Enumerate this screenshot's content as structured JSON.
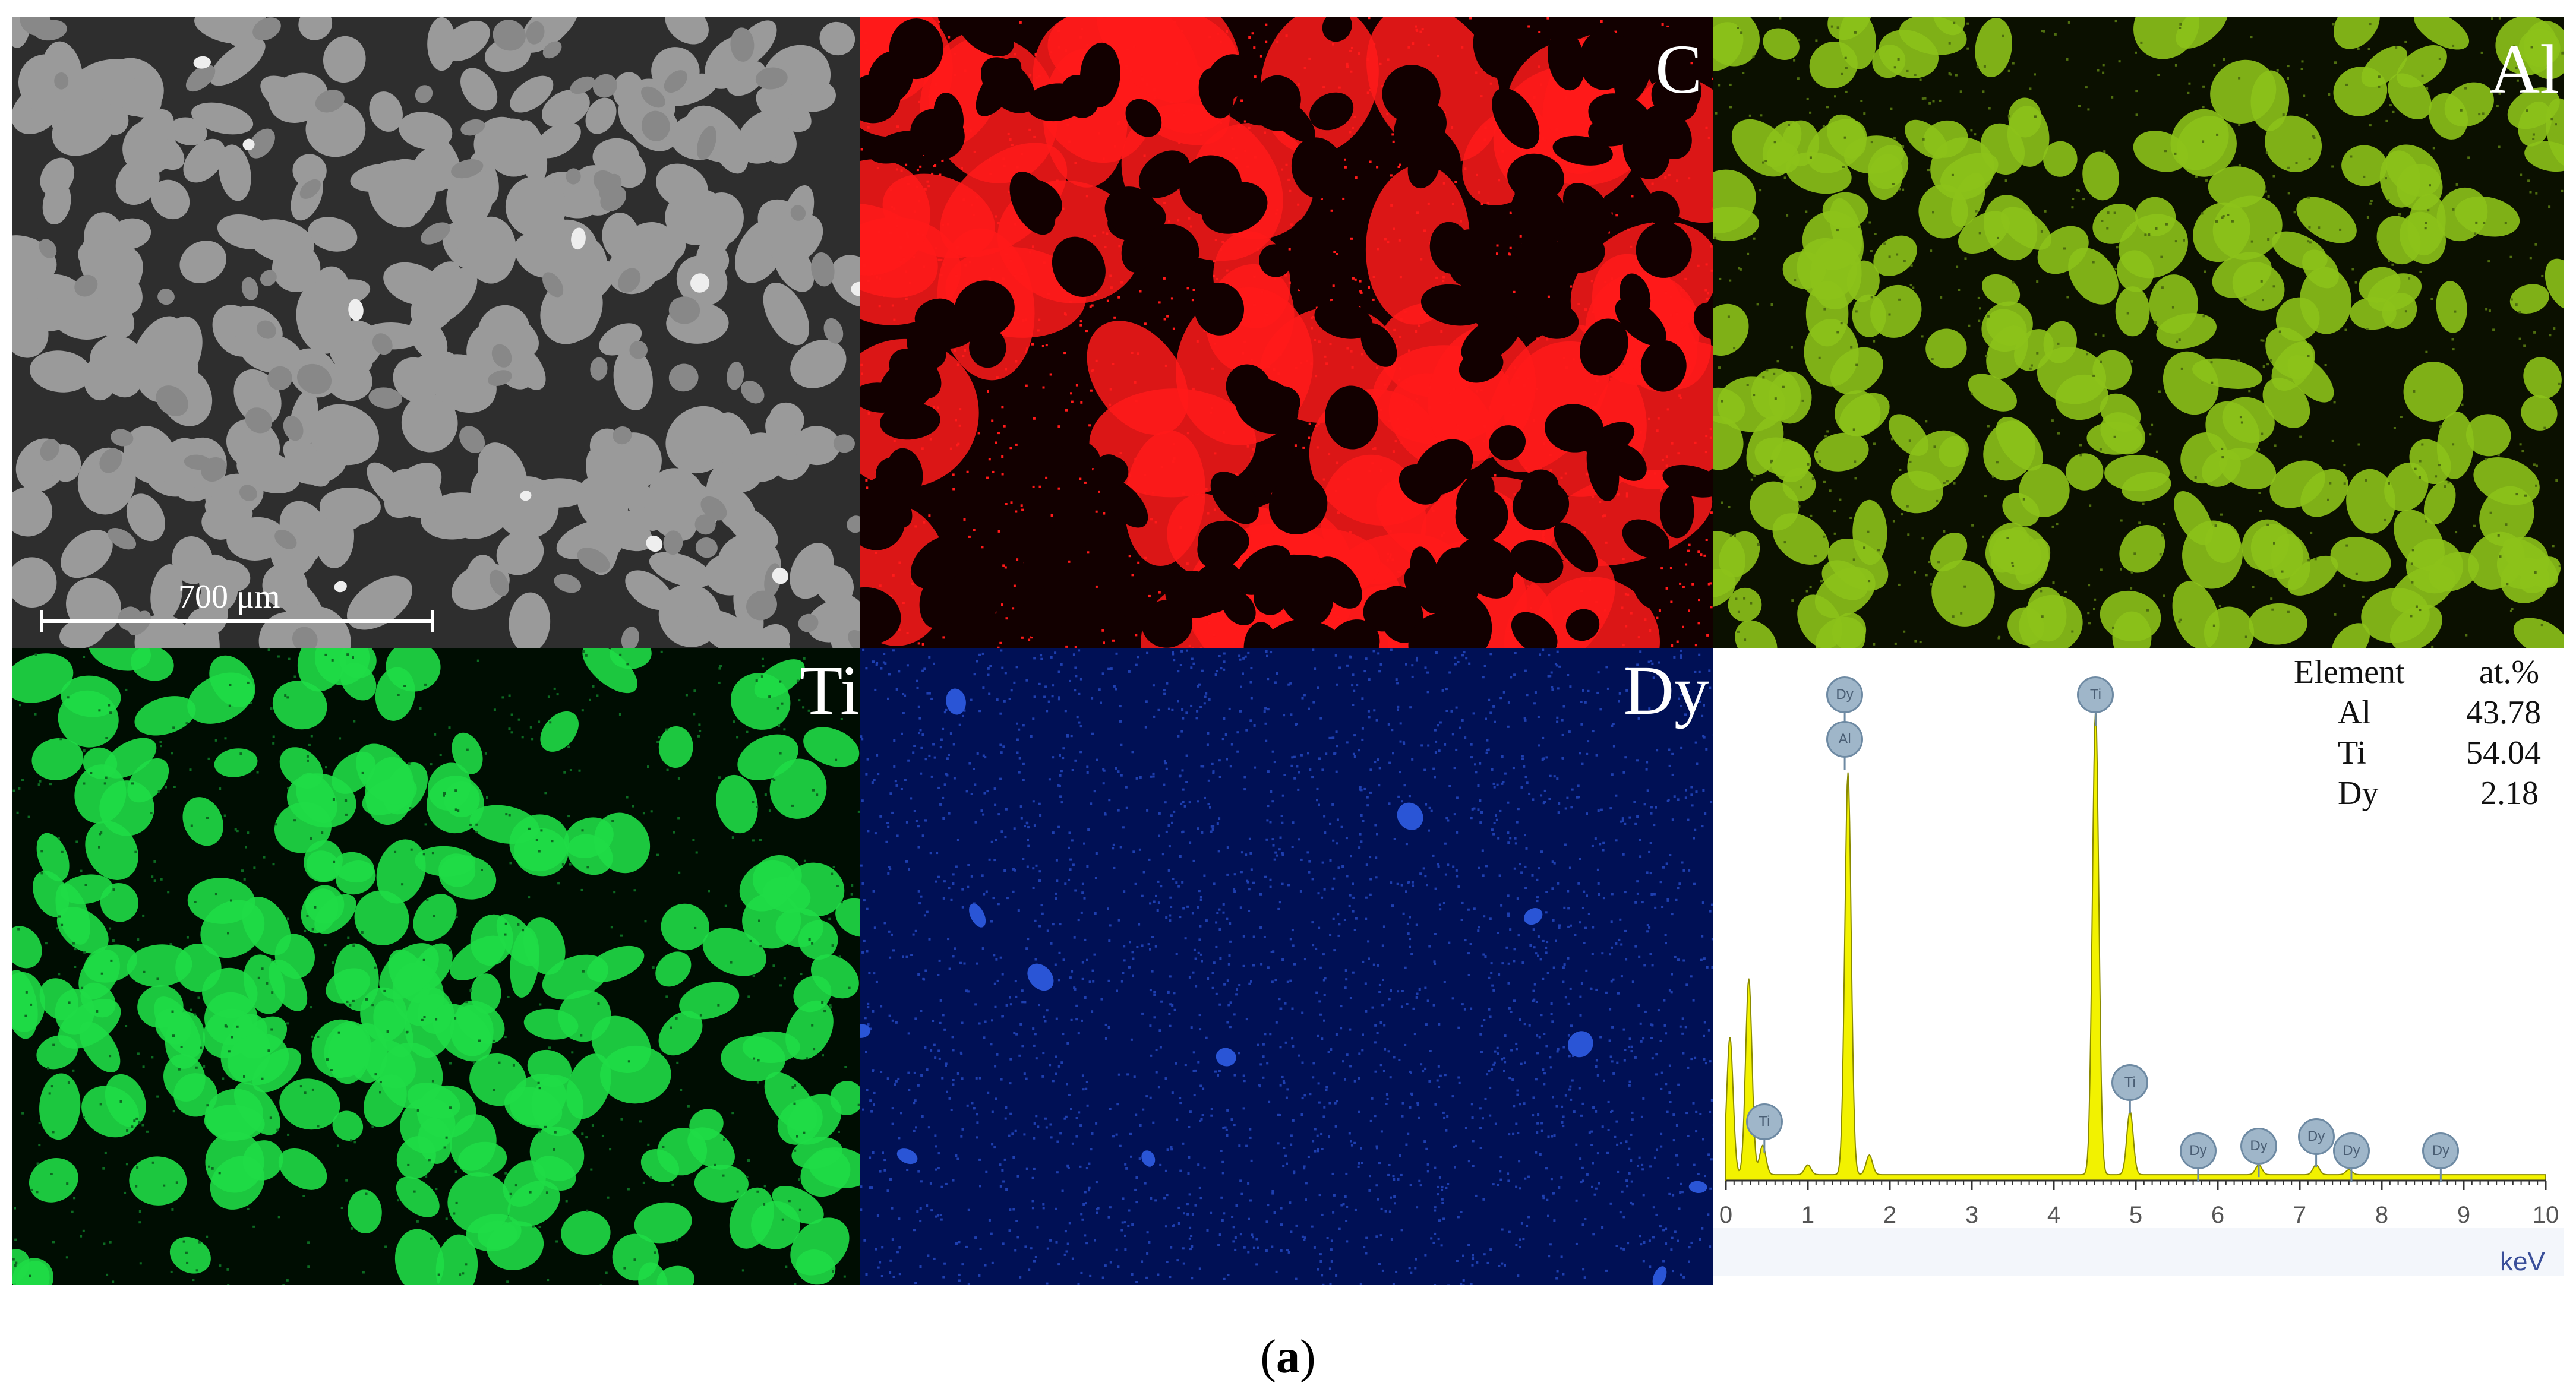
{
  "panels": {
    "sem": {
      "scale_bar_label": "700 μm"
    },
    "map_c": {
      "label": "C",
      "color": "#ff1a1a"
    },
    "map_al": {
      "label": "Al",
      "color": "#8cc21a"
    },
    "map_ti": {
      "label": "Ti",
      "color": "#1fdc46"
    },
    "map_dy": {
      "label": "Dy",
      "color": "#2a55d6"
    }
  },
  "composition_table": {
    "header_element": "Element",
    "header_value": "at.%",
    "rows": [
      {
        "element": "Al",
        "value": "43.78"
      },
      {
        "element": "Ti",
        "value": "54.04"
      },
      {
        "element": "Dy",
        "value": "2.18"
      }
    ]
  },
  "chart_data": {
    "type": "line",
    "xlabel": "keV",
    "ylabel": "",
    "xlim": [
      0,
      10
    ],
    "x_ticks": [
      "0",
      "1",
      "2",
      "3",
      "4",
      "5",
      "6",
      "7",
      "8",
      "9",
      "10"
    ],
    "fill_color": "#f2f200",
    "peaks": [
      {
        "x": 0.05,
        "y": 0.28
      },
      {
        "x": 0.28,
        "y": 0.4
      },
      {
        "x": 0.45,
        "y": 0.06
      },
      {
        "x": 1.0,
        "y": 0.02
      },
      {
        "x": 1.49,
        "y": 0.82
      },
      {
        "x": 1.75,
        "y": 0.04
      },
      {
        "x": 4.51,
        "y": 0.95
      },
      {
        "x": 4.93,
        "y": 0.13
      },
      {
        "x": 6.5,
        "y": 0.02
      },
      {
        "x": 7.2,
        "y": 0.02
      },
      {
        "x": 7.6,
        "y": 0.01
      }
    ],
    "peak_labels": [
      {
        "text": "Dy",
        "x": 1.45,
        "level": 0.99
      },
      {
        "text": "Al",
        "x": 1.45,
        "level": 0.9
      },
      {
        "text": "Ti",
        "x": 4.51,
        "level": 0.99
      },
      {
        "text": "Ti",
        "x": 0.47,
        "level": 0.12
      },
      {
        "text": "Ti",
        "x": 4.93,
        "level": 0.2
      },
      {
        "text": "Dy",
        "x": 5.76,
        "level": 0.06
      },
      {
        "text": "Dy",
        "x": 6.5,
        "level": 0.07
      },
      {
        "text": "Dy",
        "x": 7.2,
        "level": 0.09
      },
      {
        "text": "Dy",
        "x": 7.63,
        "level": 0.06
      },
      {
        "text": "Dy",
        "x": 8.72,
        "level": 0.06
      }
    ]
  },
  "caption": {
    "open": "(",
    "letter": "a",
    "close": ")"
  }
}
